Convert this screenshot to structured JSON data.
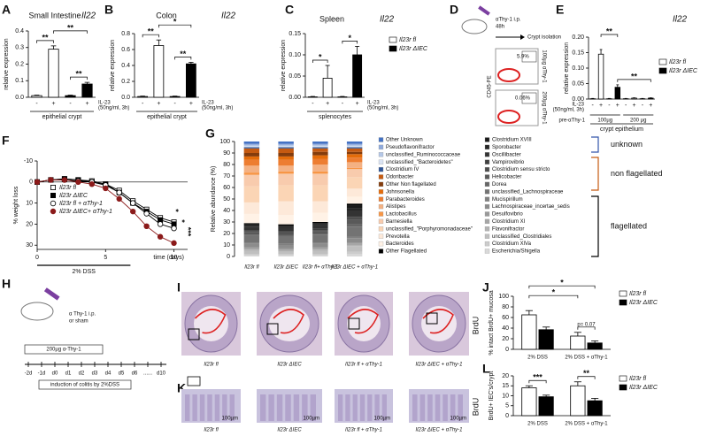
{
  "chart_data": [
    {
      "type": "bar",
      "panel": "A",
      "title": "Small Intestine",
      "gene": "Il22",
      "ylabel": "relative expression",
      "categories": [
        "-",
        "+",
        "-",
        "+"
      ],
      "values": [
        0.01,
        0.29,
        0.01,
        0.08
      ],
      "errors": [
        0.003,
        0.02,
        0.003,
        0.01
      ],
      "colors": [
        "#ffffff",
        "#ffffff",
        "#000000",
        "#000000"
      ],
      "ylim": [
        0,
        0.4
      ],
      "yticks": [
        {
          "value": 0,
          "label": "0.0"
        },
        0.1,
        0.2,
        0.3,
        0.4
      ],
      "treatment": [
        "IL-23",
        "(50ng/ml, 3h)"
      ],
      "xlabel": "epithelial crypt",
      "significance": [
        "**",
        "**",
        "**"
      ]
    },
    {
      "type": "bar",
      "panel": "B",
      "title": "Colon",
      "gene": "Il22",
      "ylabel": "relative expression",
      "categories": [
        "-",
        "+",
        "-",
        "+"
      ],
      "values": [
        0.01,
        0.65,
        0.01,
        0.42
      ],
      "errors": [
        0.005,
        0.07,
        0.005,
        0.02
      ],
      "colors": [
        "#ffffff",
        "#ffffff",
        "#000000",
        "#000000"
      ],
      "ylim": [
        0,
        0.8
      ],
      "yticks": [
        {
          "value": 0,
          "label": "0.0"
        },
        0.2,
        0.4,
        0.6,
        0.8
      ],
      "treatment": [
        "IL-23",
        "(50ng/ml, 3h)"
      ],
      "xlabel": "epithelial crypt",
      "significance": [
        "**",
        "*",
        "**"
      ]
    },
    {
      "type": "bar",
      "panel": "C",
      "title": "Spleen",
      "gene": "Il22",
      "ylabel": "relative expression",
      "categories": [
        "-",
        "+",
        "-",
        "+"
      ],
      "values": [
        0.001,
        0.045,
        0.001,
        0.1
      ],
      "errors": [
        0.001,
        0.03,
        0.001,
        0.02
      ],
      "colors": [
        "#ffffff",
        "#ffffff",
        "#000000",
        "#000000"
      ],
      "ylim": [
        0,
        0.15
      ],
      "yticks": [
        {
          "value": 0,
          "label": "0.00"
        },
        0.05,
        {
          "value": 0.1,
          "label": "0.10"
        },
        0.15
      ],
      "treatment": [
        "IL-23",
        "(50ng/ml, 3h)"
      ],
      "xlabel": "splenocytes",
      "significance": [
        "*",
        "*"
      ],
      "legend": [
        {
          "name": "Il23r fl",
          "color": "#ffffff"
        },
        {
          "name": "Il23r ΔIEC",
          "color": "#000000"
        }
      ]
    },
    {
      "type": "bar",
      "panel": "E",
      "gene": "Il22",
      "ylabel": "relative expression",
      "categories": [
        "-",
        "+",
        "-",
        "+",
        "-",
        "+",
        "-",
        "+"
      ],
      "values": [
        0.001,
        0.145,
        0.001,
        0.038,
        0.001,
        0.003,
        0.001,
        0.003
      ],
      "errors": [
        0.001,
        0.015,
        0.001,
        0.008,
        0.001,
        0.001,
        0.001,
        0.001
      ],
      "colors": [
        "#ffffff",
        "#ffffff",
        "#000000",
        "#000000",
        "#ffffff",
        "#ffffff",
        "#000000",
        "#000000"
      ],
      "ylim": [
        0,
        0.2
      ],
      "yticks": [
        {
          "value": 0,
          "label": "0.00"
        },
        0.05,
        {
          "value": 0.1,
          "label": "0.10"
        },
        0.15,
        {
          "value": 0.2,
          "label": "0.20"
        }
      ],
      "treatment": [
        "IL-23",
        "(50ng/ml, 3h)"
      ],
      "pre_label": "pre-αThy-1",
      "groups": [
        "100µg",
        "200 µg"
      ],
      "xlabel": "crypt epithelium",
      "significance": [
        "**",
        "**"
      ],
      "legend": [
        {
          "name": "Il23r fl",
          "color": "#ffffff"
        },
        {
          "name": "Il23r ΔIEC",
          "color": "#000000"
        }
      ]
    },
    {
      "type": "line",
      "panel": "F",
      "ylabel": "% weight loss",
      "xlabel": "time (days)",
      "x": [
        0,
        1,
        2,
        3,
        4,
        5,
        6,
        7,
        8,
        9,
        10
      ],
      "xlim": [
        0,
        11
      ],
      "xticks": [
        0,
        5,
        10
      ],
      "ylim": [
        -10,
        32
      ],
      "yticks": [
        -10,
        0,
        10,
        20,
        30
      ],
      "y_inverted": true,
      "treatment": "2% DSS",
      "significance": [
        "*",
        "*",
        "***"
      ],
      "series": [
        {
          "name": "Il23r fl",
          "color": "#000000",
          "marker": "square-open",
          "values": [
            0,
            -1,
            -1.5,
            -1,
            -0.5,
            1,
            4,
            9,
            13,
            17,
            19
          ]
        },
        {
          "name": "Il23r ΔIEC",
          "color": "#000000",
          "marker": "square",
          "values": [
            0,
            -1,
            -1.5,
            -1,
            0,
            1,
            5,
            10,
            14,
            18,
            20
          ]
        },
        {
          "name": "Il23r fl + αThy-1",
          "color": "#000000",
          "marker": "circle-open",
          "values": [
            0,
            -1,
            -1,
            -0.5,
            0,
            1.5,
            5,
            10,
            15,
            20,
            22
          ]
        },
        {
          "name": "Il23r ΔIEC+ αThy-1",
          "color": "#8b1a1a",
          "marker": "circle",
          "values": [
            0,
            -1,
            -1,
            0,
            1,
            3,
            8,
            14,
            21,
            26,
            29
          ]
        }
      ]
    },
    {
      "type": "stacked-bar",
      "panel": "G",
      "ylabel": "Relative abundance (%)",
      "categories": [
        "Il23r fl",
        "Il23r ΔIEC",
        "Il23r fl+ αThy-1",
        "Il23r ΔIEC + αThy-1"
      ],
      "ylim": [
        0,
        100
      ],
      "yticks": [
        0,
        10,
        20,
        30,
        40,
        50,
        60,
        70,
        80,
        90,
        100
      ],
      "groups": [
        {
          "name": "unknown",
          "color": "#3355aa",
          "series": [
            {
              "name": "Other Unknown",
              "color": "#4472c4",
              "values": [
                2,
                2,
                2,
                2
              ]
            },
            {
              "name": "Pseudoflavonifractor",
              "color": "#8faadc",
              "values": [
                1,
                1,
                1,
                1
              ]
            },
            {
              "name": "unclassified_Ruminococcaceae",
              "color": "#b4c7e7",
              "values": [
                1,
                1,
                1,
                1
              ]
            },
            {
              "name": "unclassified_\"Bacteroidetes\"",
              "color": "#dae3f3",
              "values": [
                1,
                1,
                1,
                1
              ]
            },
            {
              "name": "Clostridium IV",
              "color": "#2f5597",
              "values": [
                1,
                1,
                1,
                1
              ]
            }
          ]
        },
        {
          "name": "non flagellated",
          "color": "#c55a11",
          "series": [
            {
              "name": "Odoribacter",
              "color": "#c55a11",
              "values": [
                4,
                4,
                3,
                3
              ]
            },
            {
              "name": "Other Non flagellated",
              "color": "#843c0c",
              "values": [
                3,
                3,
                3,
                2
              ]
            },
            {
              "name": "Johnsonella",
              "color": "#e46c0a",
              "values": [
                3,
                3,
                3,
                3
              ]
            },
            {
              "name": "Parabacteroides",
              "color": "#ed7d31",
              "values": [
                5,
                5,
                5,
                4
              ]
            },
            {
              "name": "Alistipes",
              "color": "#f4b183",
              "values": [
                6,
                5,
                6,
                5
              ]
            },
            {
              "name": "Lactobacillus",
              "color": "#f79646",
              "values": [
                2,
                2,
                2,
                1
              ]
            },
            {
              "name": "Barnesiella",
              "color": "#f8cbad",
              "values": [
                10,
                10,
                10,
                7
              ]
            },
            {
              "name": "unclassified_\"Porphyromonadaceae\"",
              "color": "#fbd5b5",
              "values": [
                14,
                14,
                14,
                10
              ]
            },
            {
              "name": "Prevotella",
              "color": "#fde9d9",
              "values": [
                10,
                12,
                10,
                7
              ]
            },
            {
              "name": "Bacteroides",
              "color": "#fff2e6",
              "values": [
                8,
                8,
                8,
                6
              ]
            }
          ]
        },
        {
          "name": "flagellated",
          "color": "#000000",
          "series": [
            {
              "name": "Other Flagellated",
              "color": "#000000",
              "values": [
                1,
                1,
                1,
                2
              ]
            },
            {
              "name": "Clostridium XVIII",
              "color": "#1a1a1a",
              "values": [
                1,
                1,
                1,
                2
              ]
            },
            {
              "name": "Sporobacter",
              "color": "#262626",
              "values": [
                1,
                1,
                1,
                2
              ]
            },
            {
              "name": "Oscillibacter",
              "color": "#333333",
              "values": [
                3,
                3,
                3,
                5
              ]
            },
            {
              "name": "Vampirovibrio",
              "color": "#404040",
              "values": [
                1,
                1,
                1,
                1
              ]
            },
            {
              "name": "Clostridium sensu stricto",
              "color": "#4d4d4d",
              "values": [
                1,
                1,
                1,
                2
              ]
            },
            {
              "name": "Helicobacter",
              "color": "#595959",
              "values": [
                2,
                2,
                2,
                4
              ]
            },
            {
              "name": "Dorea",
              "color": "#666666",
              "values": [
                1,
                1,
                1,
                2
              ]
            },
            {
              "name": "unclassified_Lachnospiraceae",
              "color": "#737373",
              "values": [
                6,
                6,
                7,
                9
              ]
            },
            {
              "name": "Mucispirillum",
              "color": "#808080",
              "values": [
                1,
                1,
                1,
                1
              ]
            },
            {
              "name": "Lachnospiraceae_incertae_sedis",
              "color": "#8c8c8c",
              "values": [
                3,
                3,
                3,
                4
              ]
            },
            {
              "name": "Desulfovibrio",
              "color": "#999999",
              "values": [
                1,
                1,
                1,
                1
              ]
            },
            {
              "name": "Clostridium XI",
              "color": "#a6a6a6",
              "values": [
                1,
                1,
                1,
                1
              ]
            },
            {
              "name": "Flavonifractor",
              "color": "#b3b3b3",
              "values": [
                1,
                1,
                1,
                1
              ]
            },
            {
              "name": "unclassified_Clostridiales",
              "color": "#bfbfbf",
              "values": [
                3,
                2,
                3,
                5
              ]
            },
            {
              "name": "Clostridium XlVa",
              "color": "#cccccc",
              "values": [
                1,
                1,
                1,
                2
              ]
            },
            {
              "name": "Escherichia/Shigella",
              "color": "#d9d9d9",
              "values": [
                1,
                1,
                1,
                2
              ]
            }
          ]
        }
      ]
    },
    {
      "type": "bar",
      "panel": "J",
      "ylabel": "% intact BrdU+ mucosa",
      "categories": [
        "2% DSS",
        "2% DSS + αThy-1"
      ],
      "series": [
        {
          "name": "Il23r fl",
          "color": "#ffffff",
          "values": [
            65,
            25
          ],
          "errors": [
            8,
            7
          ]
        },
        {
          "name": "Il23r ΔIEC",
          "color": "#000000",
          "values": [
            37,
            12
          ],
          "errors": [
            5,
            4
          ]
        }
      ],
      "ylim": [
        0,
        100
      ],
      "yticks": [
        0,
        20,
        40,
        60,
        80,
        100
      ],
      "significance": [
        "*",
        "*"
      ],
      "annotation": "p= 0.07"
    },
    {
      "type": "bar",
      "panel": "L",
      "ylabel": "BrdU+ IEC's/crypt",
      "categories": [
        "2% DSS",
        "2% DSS + αThy-1"
      ],
      "series": [
        {
          "name": "Il23r fl",
          "color": "#ffffff",
          "values": [
            14,
            15
          ],
          "errors": [
            1,
            2
          ]
        },
        {
          "name": "Il23r ΔIEC",
          "color": "#000000",
          "values": [
            9.5,
            7.5
          ],
          "errors": [
            0.8,
            1.2
          ]
        }
      ],
      "ylim": [
        0,
        20
      ],
      "yticks": [
        0,
        5,
        10,
        15,
        20
      ],
      "significance": [
        "***",
        "**"
      ]
    }
  ],
  "panels": {
    "D": {
      "letter": "D",
      "injection": "αThy-1 i.p.",
      "time": "48h",
      "step": "Crypt isolation",
      "gate_top": "5.9%",
      "gate_bottom": "0.06%",
      "dose_top": "100µg αThy-1",
      "dose_bottom": "200µg αThy-1",
      "axis": "CD45-PE"
    },
    "H": {
      "letter": "H",
      "injection": "α Thy-1 i.p.",
      "alternative": "or sham",
      "dose": "200µg α-Thy-1",
      "timeline": [
        "-2d",
        "-1d",
        "d0",
        "d1",
        "d2",
        "d3",
        "d4",
        "d5",
        "d6",
        "......",
        "d10"
      ],
      "induction": "induction of colitis by 2%DSS"
    },
    "I": {
      "letter": "I",
      "stain": "BrdU",
      "captions": [
        "Il23r fl",
        "Il23r ΔIEC",
        "Il23r fl + αThy-1",
        "Il23r ΔIEC + αThy-1"
      ]
    },
    "K": {
      "letter": "K",
      "stain": "BrdU",
      "scale": "100µm",
      "captions": [
        "Il23r fl",
        "Il23r ΔIEC",
        "Il23r fl + αThy-1",
        "Il23r ΔIEC + αThy-1"
      ]
    }
  }
}
